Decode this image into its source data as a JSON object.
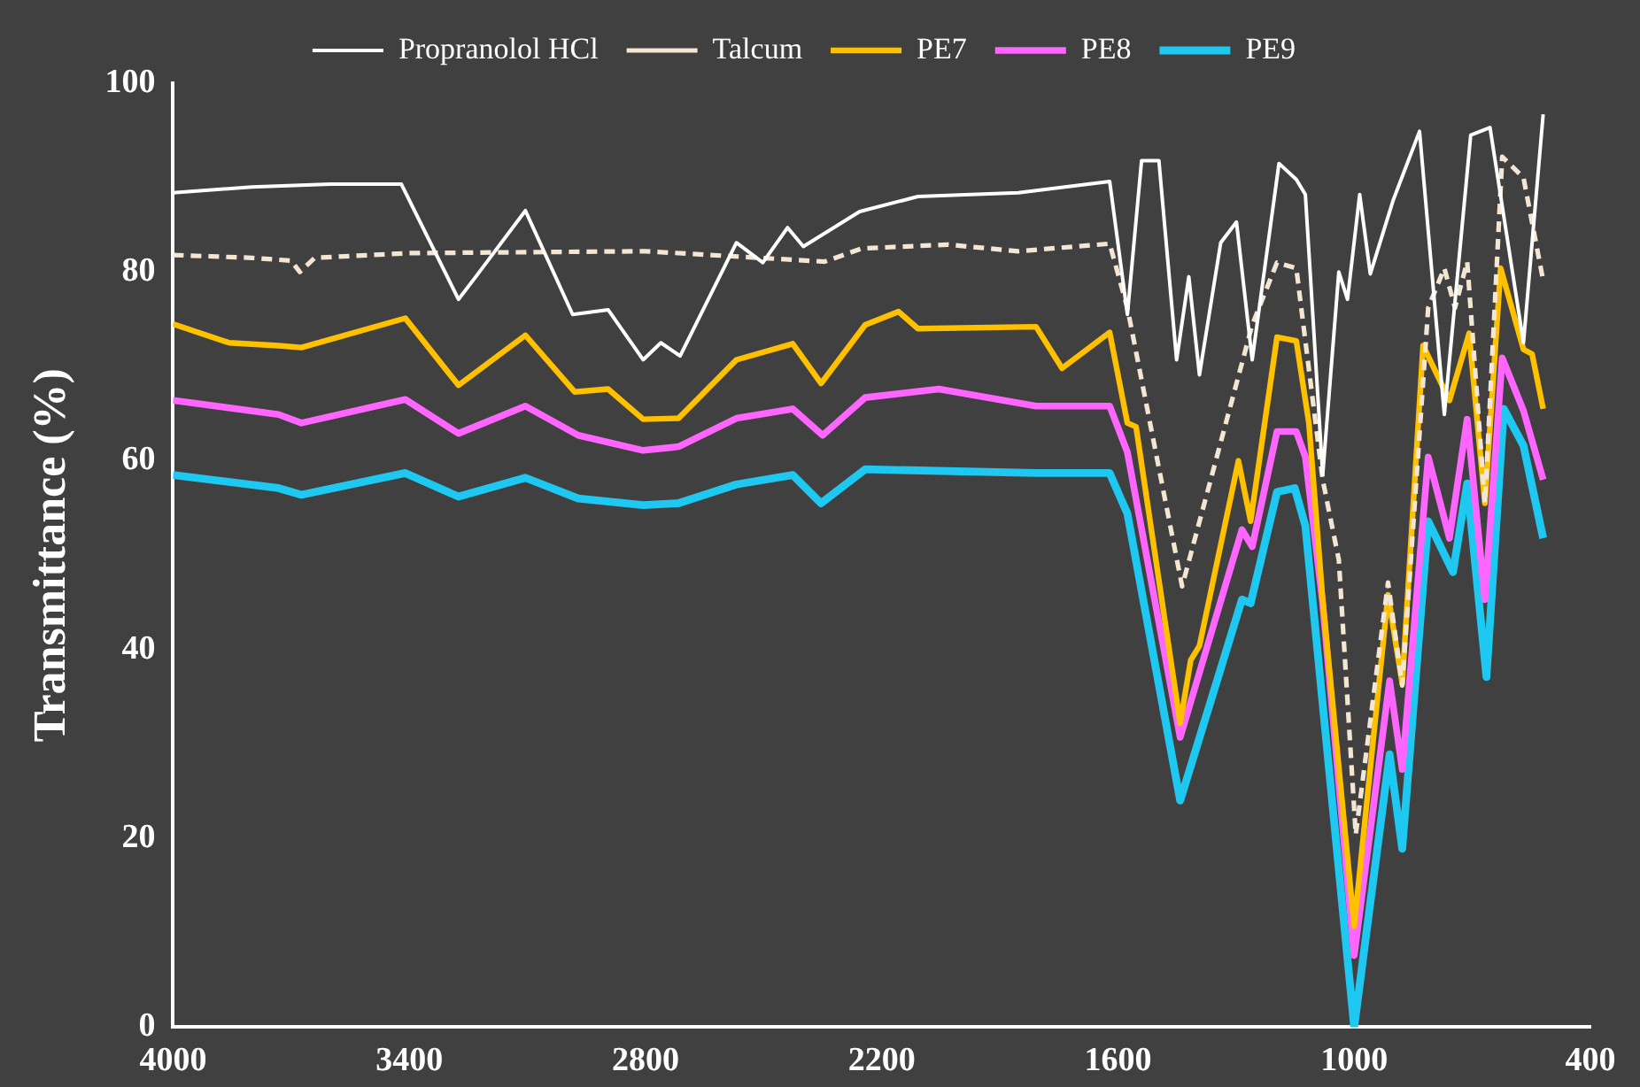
{
  "chart_data": {
    "type": "line",
    "ylabel": "Transmittance (%)",
    "xlim": [
      4000,
      400
    ],
    "xticks": [
      4000,
      3400,
      2800,
      2200,
      1600,
      1000,
      400
    ],
    "ylim": [
      0,
      100
    ],
    "yticks": [
      0,
      20,
      40,
      60,
      80,
      100
    ],
    "grid": false,
    "legend": "top",
    "marker": "none",
    "series": [
      {
        "name": "Propranolol HCl",
        "color": "#ffffff",
        "line_style": "solid",
        "x": [
          4000,
          3800,
          3600,
          3420,
          3275,
          3231,
          3105,
          2985,
          2895,
          2806,
          2761,
          2712,
          2569,
          2502,
          2439,
          2399,
          2256,
          2108,
          1853,
          1621,
          1576,
          1540,
          1496,
          1451,
          1420,
          1393,
          1339,
          1299,
          1259,
          1191,
          1147,
          1124,
          1080,
          1039,
          1017,
          986,
          959,
          901,
          834,
          771,
          704,
          655,
          570,
          520
        ],
        "values": [
          88.4,
          89,
          89.3,
          89.3,
          77.1,
          79.5,
          86.5,
          75.5,
          76,
          70.7,
          72.5,
          71.1,
          83.1,
          81,
          84.7,
          82.7,
          86.4,
          88,
          88.4,
          89.6,
          75.5,
          91.8,
          91.8,
          70.7,
          79.5,
          69.1,
          83.1,
          85.3,
          70.7,
          91.5,
          89.8,
          88.2,
          58.5,
          80,
          77.1,
          88.2,
          79.8,
          87.6,
          94.9,
          64.9,
          94.5,
          95.3,
          72.5,
          96.7
        ]
      },
      {
        "name": "Talcum",
        "color": "#f5e6d3",
        "line_style": "dashed",
        "x": [
          4000,
          3800,
          3700,
          3678,
          3640,
          3400,
          2800,
          2345,
          2250,
          2032,
          1853,
          1621,
          1576,
          1437,
          1259,
          1196,
          1147,
          1080,
          1039,
          996,
          914,
          878,
          812,
          771,
          744,
          713,
          668,
          624,
          570,
          520
        ],
        "values": [
          81.8,
          81.5,
          81.2,
          80,
          81.5,
          82,
          82.2,
          81.1,
          82.5,
          82.9,
          82.2,
          83,
          76.2,
          46.7,
          74.4,
          81,
          80.4,
          58,
          49.5,
          20.4,
          47.1,
          36.2,
          76.2,
          80.4,
          76.2,
          81.1,
          55.5,
          92.2,
          90,
          79.1
        ]
      },
      {
        "name": "PE7",
        "color": "#ffc000",
        "line_style": "solid",
        "x": [
          4000,
          3857,
          3732,
          3674,
          3410,
          3275,
          3105,
          2980,
          2895,
          2806,
          2716,
          2569,
          2426,
          2354,
          2242,
          2157,
          2108,
          1808,
          1742,
          1621,
          1576,
          1554,
          1442,
          1415,
          1393,
          1294,
          1263,
          1196,
          1147,
          1115,
          1080,
          1000,
          914,
          878,
          825,
          758,
          708,
          668,
          628,
          570,
          548,
          520
        ],
        "values": [
          74.5,
          72.5,
          72.2,
          72,
          75.1,
          68,
          73.3,
          67.3,
          67.6,
          64.4,
          64.5,
          70.7,
          72.4,
          68.2,
          74.4,
          75.8,
          74,
          74.2,
          69.8,
          73.6,
          64,
          63.6,
          32.2,
          38.9,
          40.4,
          60,
          53.6,
          73.1,
          72.7,
          64,
          45.3,
          10.7,
          45.8,
          36.4,
          72.2,
          66.4,
          73.5,
          55.5,
          80.4,
          71.8,
          71.3,
          65.5
        ]
      },
      {
        "name": "PE8",
        "color": "#ff66ff",
        "line_style": "solid",
        "x": [
          4000,
          3732,
          3674,
          3410,
          3275,
          3105,
          2971,
          2806,
          2716,
          2569,
          2426,
          2350,
          2242,
          2055,
          1808,
          1621,
          1576,
          1442,
          1285,
          1259,
          1196,
          1147,
          1124,
          1080,
          1000,
          910,
          878,
          812,
          758,
          713,
          668,
          624,
          570,
          520
        ],
        "values": [
          66.4,
          64.9,
          64,
          66.5,
          62.9,
          65.8,
          62.7,
          61.1,
          61.5,
          64.5,
          65.5,
          62.7,
          66.7,
          67.6,
          65.8,
          65.8,
          60.9,
          30.7,
          52.7,
          50.9,
          63.1,
          63.1,
          60.4,
          44.9,
          7.6,
          36.7,
          27.3,
          60.4,
          51.8,
          64.4,
          45.3,
          70.9,
          65.3,
          58
        ]
      },
      {
        "name": "PE9",
        "color": "#1ec8f0",
        "line_style": "solid",
        "x": [
          4000,
          3732,
          3674,
          3410,
          3275,
          3105,
          2971,
          2806,
          2716,
          2569,
          2426,
          2354,
          2242,
          1808,
          1621,
          1576,
          1442,
          1285,
          1263,
          1196,
          1151,
          1124,
          1093,
          1000,
          910,
          878,
          812,
          749,
          713,
          664,
          620,
          570,
          520
        ],
        "values": [
          58.5,
          57.1,
          56.4,
          58.7,
          56.2,
          58.2,
          56,
          55.3,
          55.5,
          57.5,
          58.5,
          55.5,
          59.1,
          58.7,
          58.7,
          54.4,
          24,
          45.3,
          44.9,
          56.7,
          57.1,
          53.1,
          39.8,
          0,
          28.9,
          18.9,
          53.6,
          48.2,
          57.6,
          37.1,
          65.5,
          61.6,
          51.8
        ]
      }
    ]
  }
}
